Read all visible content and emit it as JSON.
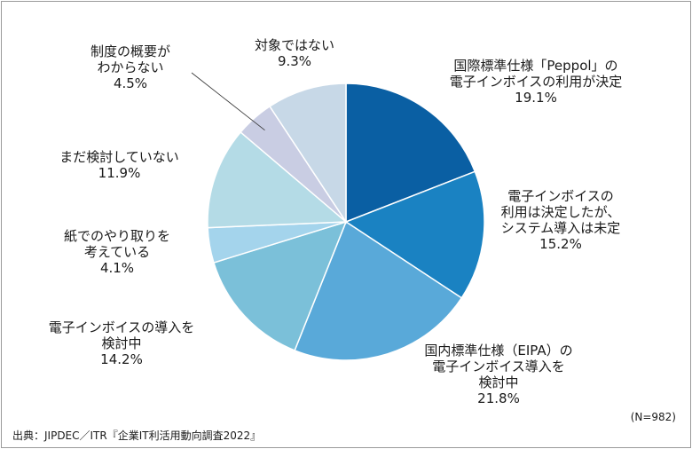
{
  "chart_data": {
    "type": "pie",
    "title": "",
    "sample_size": "(N=982)",
    "slices": [
      {
        "label_lines": [
          "国際標準仕様「Peppol」の",
          "電子インボイスの利用が決定"
        ],
        "value": 19.1,
        "pct": "19.1%",
        "color": "#0a5fa3"
      },
      {
        "label_lines": [
          "電子インボイスの",
          "利用は決定したが、",
          "システム導入は未定"
        ],
        "value": 15.2,
        "pct": "15.2%",
        "color": "#1a82c2"
      },
      {
        "label_lines": [
          "国内標準仕様（EIPA）の",
          "電子インボイス導入を",
          "検討中"
        ],
        "value": 21.8,
        "pct": "21.8%",
        "color": "#59a9d9"
      },
      {
        "label_lines": [
          "電子インボイスの導入を",
          "検討中"
        ],
        "value": 14.2,
        "pct": "14.2%",
        "color": "#7bc0d9"
      },
      {
        "label_lines": [
          "紙でのやり取りを",
          "考えている"
        ],
        "value": 4.1,
        "pct": "4.1%",
        "color": "#a4d4ec"
      },
      {
        "label_lines": [
          "まだ検討していない"
        ],
        "value": 11.9,
        "pct": "11.9%",
        "color": "#b4dbe6"
      },
      {
        "label_lines": [
          "制度の概要が",
          "わからない"
        ],
        "value": 4.5,
        "pct": "4.5%",
        "color": "#c9cde3"
      },
      {
        "label_lines": [
          "対象ではない"
        ],
        "value": 9.3,
        "pct": "9.3%",
        "color": "#c7d8e7"
      }
    ]
  },
  "source": "出典：JIPDEC／ITR『企業IT利活用動向調査2022』"
}
